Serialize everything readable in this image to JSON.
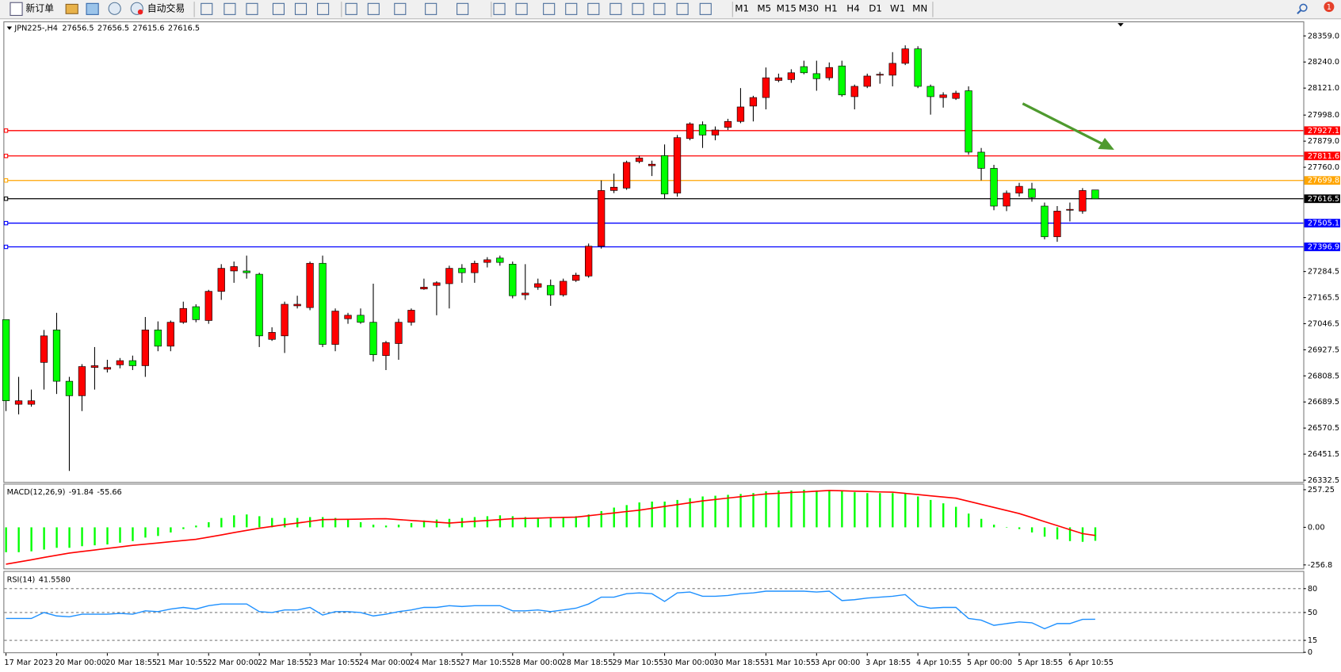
{
  "toolbar": {
    "new_order": "新订单",
    "auto_trading": "自动交易",
    "timeframes": [
      "M1",
      "M5",
      "M15",
      "M30",
      "H1",
      "H4",
      "D1",
      "W1",
      "MN"
    ],
    "notifications": 1
  },
  "chart_data": [
    {
      "type": "candlestick",
      "title": "JPN225-,H4",
      "categories": [
        "17 Mar 2023",
        null,
        null,
        null,
        "20 Mar 00:00",
        null,
        null,
        null,
        "20 Mar 18:55",
        null,
        null,
        null,
        "21 Mar 10:55",
        null,
        null,
        null,
        "22 Mar 00:00",
        null,
        null,
        null,
        "22 Mar 18:55",
        null,
        null,
        null,
        "23 Mar 10:55",
        null,
        null,
        null,
        "24 Mar 00:00",
        null,
        null,
        null,
        "24 Mar 18:55",
        null,
        null,
        null,
        "27 Mar 10:55",
        null,
        null,
        null,
        "28 Mar 00:00",
        null,
        null,
        null,
        "28 Mar 18:55",
        null,
        null,
        null,
        "29 Mar 10:55",
        null,
        null,
        null,
        "30 Mar 00:00",
        null,
        null,
        null,
        "30 Mar 18:55",
        null,
        null,
        null,
        "31 Mar 10:55",
        null,
        null,
        null,
        "3 Apr 00:00",
        null,
        null,
        null,
        "3 Apr 18:55",
        null,
        null,
        null,
        "4 Apr 10:55",
        null,
        null,
        null,
        "5 Apr 00:00",
        null,
        null,
        null,
        "5 Apr 18:55",
        null,
        null,
        null,
        "6 Apr 10:55",
        null,
        null
      ],
      "open": [
        27065,
        26679,
        26679,
        26870,
        27018,
        26784,
        26718,
        26847,
        26839,
        26859,
        26878,
        26855,
        27018,
        26944,
        27053,
        27124,
        27061,
        27194,
        27287,
        27287,
        27272,
        26975,
        26991,
        27128,
        27120,
        27322,
        26952,
        27069,
        27085,
        27053,
        26901,
        26956,
        27053,
        27205,
        27221,
        27229,
        27299,
        27279,
        27326,
        27346,
        27318,
        27178,
        27213,
        27221,
        27178,
        27244,
        27264,
        27400,
        27654,
        27665,
        27786,
        27767,
        27813,
        27642,
        27891,
        27954,
        27907,
        27942,
        27969,
        28039,
        28078,
        28156,
        28160,
        28219,
        28187,
        28168,
        28222,
        28082,
        28129,
        28180,
        28180,
        28234,
        28300,
        28129,
        28078,
        28074,
        28109,
        27829,
        27755,
        27583,
        27642,
        27661,
        27583,
        27443,
        27564,
        27560,
        27656.5
      ],
      "high": [
        27065,
        26804,
        26746,
        27018,
        27096,
        26804,
        26862,
        26940,
        26882,
        26890,
        26901,
        27077,
        27057,
        27061,
        27147,
        27135,
        27201,
        27318,
        27330,
        27357,
        27279,
        27030,
        27147,
        27174,
        27330,
        27357,
        27116,
        27096,
        27116,
        27229,
        26968,
        27069,
        27116,
        27252,
        27240,
        27311,
        27318,
        27334,
        27350,
        27357,
        27330,
        27318,
        27252,
        27248,
        27252,
        27279,
        27412,
        27700,
        27731,
        27790,
        27813,
        27790,
        27864,
        27907,
        27965,
        27969,
        27946,
        27981,
        28121,
        28086,
        28215,
        28187,
        28207,
        28246,
        28246,
        28238,
        28246,
        28137,
        28187,
        28195,
        28285,
        28316,
        28312,
        28137,
        28102,
        28109,
        28129,
        27848,
        27771,
        27654,
        27689,
        27689,
        27599,
        27583,
        27599,
        27665,
        27656.5
      ],
      "low": [
        26648,
        26633,
        26668,
        26746,
        26726,
        26375,
        26648,
        26746,
        26824,
        26843,
        26835,
        26804,
        26921,
        26921,
        27046,
        27053,
        27046,
        27155,
        27233,
        27252,
        26940,
        26968,
        26913,
        27116,
        27108,
        26940,
        26921,
        27046,
        27046,
        26874,
        26835,
        26882,
        27038,
        27201,
        27085,
        27116,
        27233,
        27233,
        27303,
        27311,
        27162,
        27155,
        27201,
        27128,
        27170,
        27237,
        27256,
        27389,
        27642,
        27657,
        27778,
        27720,
        27615,
        27626,
        27883,
        27848,
        27883,
        27930,
        27961,
        27969,
        28024,
        28148,
        28145,
        28184,
        28109,
        28156,
        28082,
        28024,
        28121,
        28141,
        28129,
        28226,
        28121,
        28000,
        28032,
        28067,
        27817,
        27700,
        27564,
        27560,
        27626,
        27603,
        27431,
        27420,
        27513,
        27548,
        27615.6
      ],
      "close": [
        26695,
        26695,
        26695,
        26991,
        26784,
        26718,
        26851,
        26855,
        26847,
        26878,
        26855,
        27018,
        26944,
        27053,
        27116,
        27065,
        27194,
        27299,
        27307,
        27279,
        26991,
        27007,
        27135,
        27135,
        27322,
        26952,
        27104,
        27085,
        27053,
        26905,
        26960,
        27053,
        27108,
        27213,
        27233,
        27299,
        27279,
        27322,
        27338,
        27326,
        27174,
        27186,
        27229,
        27178,
        27240,
        27268,
        27400,
        27654,
        27669,
        27782,
        27802,
        27774,
        27638,
        27895,
        27958,
        27907,
        27930,
        27969,
        28035,
        28078,
        28168,
        28168,
        28191,
        28191,
        28164,
        28215,
        28090,
        28129,
        28176,
        28184,
        28234,
        28300,
        28129,
        28082,
        28090,
        28098,
        27829,
        27755,
        27583,
        27642,
        27673,
        27622,
        27443,
        27560,
        27568,
        27654,
        27616.5
      ],
      "up_color": "#ff0000",
      "down_color": "#00ff00",
      "ylim": [
        26324.7,
        28421.3
      ],
      "yticks": [
        {
          "value": 28359,
          "label": "28359.0"
        },
        {
          "value": 28240,
          "label": "28240.0"
        },
        {
          "value": 28121,
          "label": "28121.0"
        },
        {
          "value": 27998,
          "label": "27998.0"
        },
        {
          "value": 27879,
          "label": "27879.0"
        },
        {
          "value": 27760,
          "label": "27760.0"
        },
        27284.5,
        27165.5,
        27046.5,
        26927.5,
        26808.5,
        26689.5,
        26570.5,
        26451.5,
        26332.5
      ],
      "levels": [
        {
          "value": 27927.1,
          "color": "#ff0000"
        },
        {
          "value": 27811.6,
          "color": "#ff0000"
        },
        {
          "value": 27699.8,
          "color": "#ffa500"
        },
        {
          "value": 27616.5,
          "color": "#000000"
        },
        {
          "value": 27505.1,
          "color": "#0000ff"
        },
        {
          "value": 27396.9,
          "color": "#0000ff"
        }
      ]
    },
    {
      "type": "macd",
      "title": "MACD(12,26,9)",
      "series": [
        {
          "color": "#00ff00",
          "values": [
            -170,
            -170,
            -164,
            -152,
            -140,
            -140,
            -129,
            -123,
            -117,
            -105,
            -94,
            -70,
            -59,
            -35,
            -12,
            12,
            35,
            64,
            82,
            88,
            76,
            64,
            64,
            64,
            70,
            70,
            64,
            53,
            35,
            18,
            12,
            18,
            29,
            47,
            53,
            58,
            64,
            70,
            76,
            82,
            76,
            70,
            64,
            64,
            70,
            76,
            88,
            111,
            135,
            152,
            170,
            176,
            176,
            187,
            199,
            211,
            216,
            222,
            228,
            234,
            246,
            252,
            252,
            257,
            252,
            252,
            246,
            240,
            234,
            234,
            234,
            234,
            211,
            187,
            164,
            140,
            94,
            58,
            18,
            0,
            -12,
            -35,
            -64,
            -82,
            -94,
            -99,
            -91.84
          ]
        },
        {
          "color": "#ff0000",
          "values": [
            -252,
            -237,
            -222,
            -206,
            -191,
            -176,
            -165,
            -155,
            -144,
            -134,
            -123,
            -115,
            -107,
            -98,
            -90,
            -82,
            -67,
            -52,
            -36,
            -21,
            -6,
            6,
            18,
            29,
            41,
            53,
            54,
            55,
            56,
            58,
            59,
            53,
            47,
            41,
            35,
            29,
            35,
            41,
            47,
            53,
            59,
            61,
            63,
            66,
            68,
            70,
            79,
            89,
            98,
            108,
            117,
            130,
            143,
            155,
            168,
            181,
            190,
            200,
            209,
            219,
            228,
            233,
            238,
            242,
            247,
            252,
            250,
            247,
            245,
            242,
            240,
            232,
            224,
            215,
            207,
            199,
            178,
            157,
            136,
            115,
            94,
            67,
            39,
            12,
            -16,
            -43,
            -55.66
          ]
        }
      ],
      "ylim": [
        -280.8,
        292.5
      ],
      "yticks": [
        257.25,
        {
          "value": 0,
          "label": "0.00"
        },
        -256.8
      ]
    },
    {
      "type": "line",
      "title": "RSI(14)",
      "value_label": "41.5580",
      "series": [
        {
          "color": "#1e90ff",
          "values": [
            42.5,
            42.5,
            42.5,
            50,
            45.7,
            44.6,
            47.9,
            47.9,
            47.9,
            48.9,
            47.9,
            52.1,
            51.1,
            54.3,
            56.4,
            54.3,
            58.6,
            60.7,
            60.7,
            60.7,
            51.1,
            50,
            53.2,
            53.2,
            56.4,
            46.8,
            51.1,
            51.1,
            50,
            45.7,
            47.9,
            51.1,
            53.2,
            56.4,
            56.4,
            58.6,
            57.5,
            58.6,
            58.6,
            58.6,
            52.1,
            52.1,
            53.2,
            51.1,
            53.2,
            55.4,
            60.7,
            69.3,
            69.3,
            73.6,
            74.6,
            73.6,
            63.9,
            74.6,
            75.7,
            70.4,
            70.4,
            71.4,
            73.6,
            74.6,
            76.8,
            76.8,
            76.8,
            76.8,
            75.7,
            76.8,
            65.0,
            66.1,
            68.2,
            69.3,
            70.4,
            72.5,
            58.6,
            55.4,
            56.4,
            56.4,
            42.5,
            40.4,
            33.9,
            36.1,
            38.2,
            37.1,
            29.6,
            36.1,
            36.1,
            41.4,
            41.558
          ]
        }
      ],
      "ylim": [
        0,
        100
      ],
      "yticks": [
        80,
        50,
        15,
        0
      ],
      "levels": [
        80,
        50,
        15
      ]
    }
  ]
}
